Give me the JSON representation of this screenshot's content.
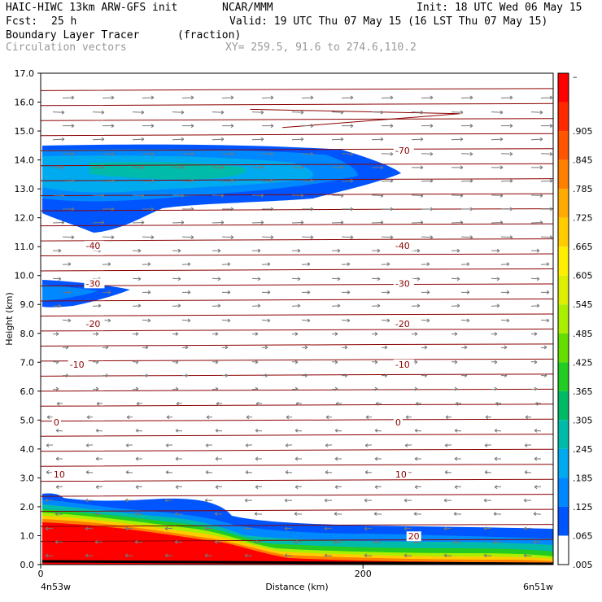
{
  "header": {
    "model": "HAIC-HIWC 13km ARW-GFS init",
    "org": "NCAR/MMM",
    "init": "Init: 18 UTC Wed 06 May 15",
    "fcst_label": "Fcst:",
    "fcst_value": "25 h",
    "valid": "Valid: 19 UTC Thu 07 May 15 (16 LST Thu 07 May 15)",
    "field_name": "Boundary Layer Tracer",
    "field_unit": "(fraction)",
    "overlay_name": "Circulation vectors",
    "xy_range": "XY= 259.5, 91.6 to 274.6,110.2"
  },
  "chart_data": {
    "type": "heatmap",
    "ylabel": "Height (km)",
    "xlabel": "Distance (km)",
    "x_left_label": "4n53w",
    "x_right_label": "6n51w",
    "xlim": [
      0,
      318
    ],
    "ylim": [
      0,
      17
    ],
    "x_ticks": [
      {
        "value": 0,
        "label": "0"
      },
      {
        "value": 200,
        "label": "200"
      }
    ],
    "y_ticks": [
      "0.0",
      "1.0",
      "2.0",
      "3.0",
      "4.0",
      "5.0",
      "6.0",
      "7.0",
      "8.0",
      "9.0",
      "10.0",
      "11.0",
      "12.0",
      "13.0",
      "14.0",
      "15.0",
      "16.0",
      "17.0"
    ],
    "colorbar_labels": [
      "–",
      ".905",
      ".845",
      ".785",
      ".725",
      ".665",
      ".605",
      ".545",
      ".485",
      ".425",
      ".365",
      ".305",
      ".245",
      ".185",
      ".125",
      ".065",
      ".005"
    ],
    "colorbar_colors": [
      "#ff0000",
      "#ff2a00",
      "#ff5500",
      "#ff8000",
      "#ffaa00",
      "#ffcc00",
      "#ffee00",
      "#ddee00",
      "#aaee00",
      "#66dd00",
      "#22cc22",
      "#00bb66",
      "#00bbaa",
      "#00aaee",
      "#0088ff",
      "#0055ff",
      "#ffffff"
    ],
    "isotherms": [
      {
        "label": "-70",
        "at": [
          {
            "x": 220,
            "y": 14.3
          }
        ]
      },
      {
        "label": "-40",
        "at": [
          {
            "x": 28,
            "y": 11.0
          },
          {
            "x": 220,
            "y": 11.0
          }
        ]
      },
      {
        "label": "-30",
        "at": [
          {
            "x": 28,
            "y": 9.7
          },
          {
            "x": 220,
            "y": 9.7
          }
        ]
      },
      {
        "label": "-20",
        "at": [
          {
            "x": 28,
            "y": 8.3
          },
          {
            "x": 220,
            "y": 8.3
          }
        ]
      },
      {
        "label": "-10",
        "at": [
          {
            "x": 18,
            "y": 6.9
          },
          {
            "x": 220,
            "y": 6.9
          }
        ]
      },
      {
        "label": "0",
        "at": [
          {
            "x": 8,
            "y": 4.9
          },
          {
            "x": 220,
            "y": 4.9
          }
        ]
      },
      {
        "label": "10",
        "at": [
          {
            "x": 8,
            "y": 3.1
          },
          {
            "x": 220,
            "y": 3.1
          }
        ]
      },
      {
        "label": "20",
        "at": [
          {
            "x": 228,
            "y": 0.95
          }
        ]
      }
    ]
  }
}
